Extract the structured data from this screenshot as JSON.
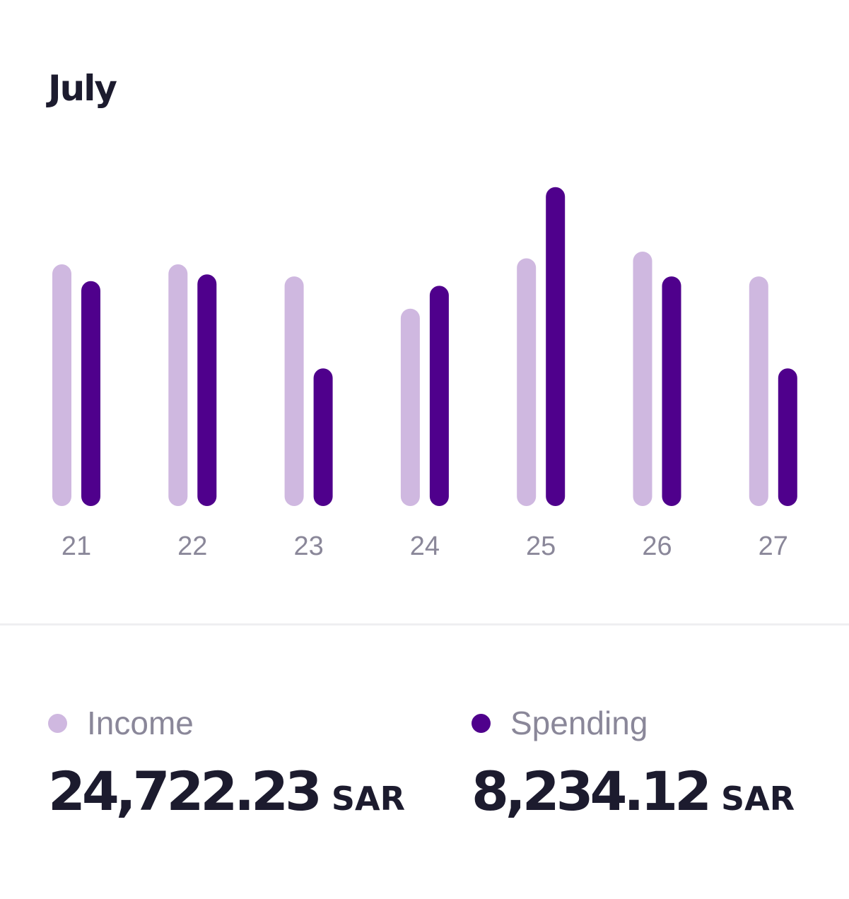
{
  "chart_data": {
    "type": "bar",
    "title": "July",
    "categories": [
      "21",
      "22",
      "23",
      "24",
      "25",
      "26",
      "27"
    ],
    "series": [
      {
        "name": "Income",
        "color": "#cfb8e0",
        "values": [
          360,
          360,
          342,
          294,
          369,
          379,
          342
        ]
      },
      {
        "name": "Spending",
        "color": "#4f008c",
        "values": [
          335,
          345,
          205,
          328,
          475,
          342,
          205
        ]
      }
    ],
    "ylim": [
      0,
      500
    ],
    "grid": false,
    "legend": "bottom"
  },
  "summary": {
    "income": {
      "label": "Income",
      "value": "24,722.23",
      "currency": "SAR",
      "color": "#cfb8e0"
    },
    "spending": {
      "label": "Spending",
      "value": "8,234.12",
      "currency": "SAR",
      "color": "#4f008c"
    }
  }
}
